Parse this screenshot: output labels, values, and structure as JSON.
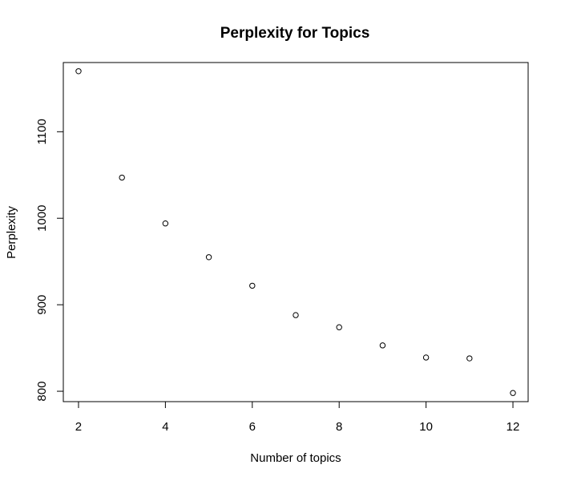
{
  "chart_data": {
    "type": "scatter",
    "title": "Perplexity for Topics",
    "xlabel": "Number of topics",
    "ylabel": "Perplexity",
    "xlim": [
      1.65,
      12.35
    ],
    "ylim": [
      788,
      1180
    ],
    "x_ticks": [
      2,
      4,
      6,
      8,
      10,
      12
    ],
    "y_ticks": [
      800,
      900,
      1000,
      1100
    ],
    "grid": false,
    "marker": "open-circle",
    "color": "#000000",
    "series": [
      {
        "x": [
          2,
          3,
          4,
          5,
          6,
          7,
          8,
          9,
          10,
          11,
          12
        ],
        "y": [
          1170,
          1047,
          994,
          955,
          922,
          888,
          874,
          853,
          839,
          838,
          798
        ]
      }
    ]
  }
}
